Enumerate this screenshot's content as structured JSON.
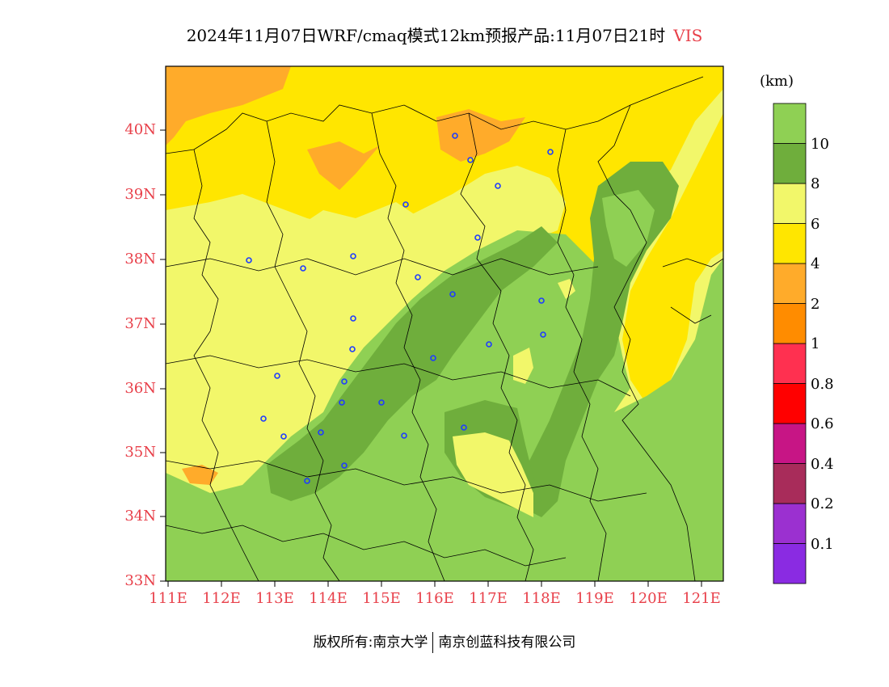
{
  "title": {
    "main": "2024年11月07日WRF/cmaq模式12km预报产品:11月07日21时",
    "variable": "VIS"
  },
  "unit": "(km)",
  "lat_labels": [
    "40N",
    "39N",
    "38N",
    "37N",
    "36N",
    "35N",
    "34N",
    "33N"
  ],
  "lon_labels": [
    "111E",
    "112E",
    "113E",
    "114E",
    "115E",
    "116E",
    "117E",
    "118E",
    "119E",
    "120E",
    "121E"
  ],
  "colorbar": {
    "colors": [
      "#8a2be2",
      "#9b30d0",
      "#a82c5a",
      "#c71585",
      "#ff0000",
      "#ff3050",
      "#ff8c00",
      "#ffab2a",
      "#ffe600",
      "#f2f76a",
      "#6fae3c",
      "#8fd054"
    ],
    "labels": [
      "0.1",
      "0.2",
      "0.4",
      "0.6",
      "0.8",
      "1",
      "2",
      "4",
      "6",
      "8",
      "10"
    ]
  },
  "legend_colors": {
    "vis_below_4km": "#ffab2a",
    "vis_4_6km": "#ffe600",
    "vis_6_8km": "#f2f76a",
    "vis_8_10km": "#6fae3c",
    "vis_above_10km": "#8fd054"
  },
  "footer": {
    "copyright": "版权所有:南京大学",
    "company": "南京创蓝科技有限公司"
  }
}
